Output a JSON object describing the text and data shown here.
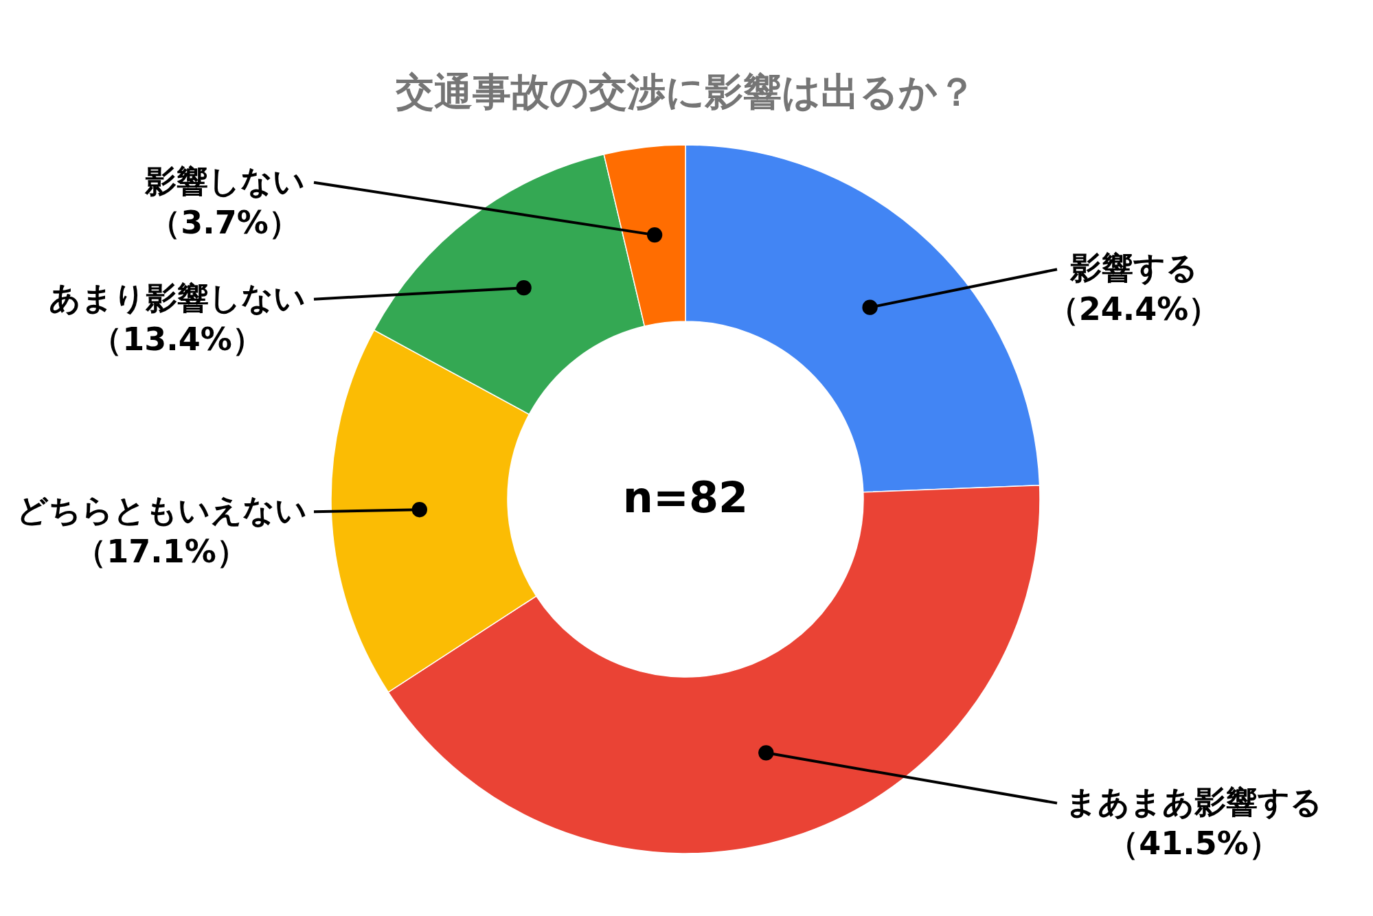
{
  "chart_data": {
    "type": "donut",
    "title": "交通事故の交渉に影響は出るか？",
    "categories": [
      "影響する",
      "まあまあ影響する",
      "どちらともいえない",
      "あまり影響しない",
      "影響しない"
    ],
    "values": [
      24.4,
      41.5,
      17.1,
      13.4,
      3.7
    ],
    "colors": [
      "#4285f4",
      "#ea4335",
      "#fbbc04",
      "#34a853",
      "#ff6d01"
    ],
    "value_labels": [
      "（24.4%）",
      "（41.5%）",
      "（17.1%）",
      "（13.4%）",
      "（3.7%）"
    ],
    "annotations": [
      "n=82"
    ]
  }
}
